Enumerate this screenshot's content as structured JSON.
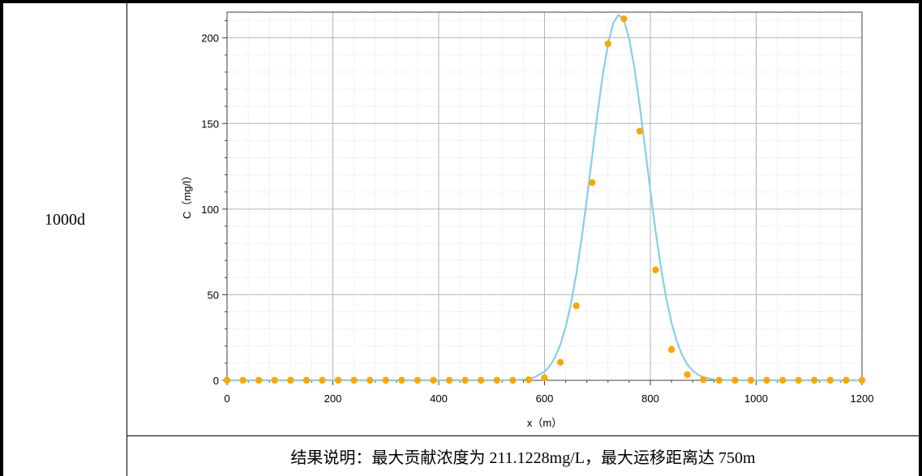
{
  "table": {
    "time_label": "1000d",
    "note": "结果说明：最大贡献浓度为 211.1228mg/L，最大运移距离达 750m"
  },
  "chart_data": {
    "type": "line",
    "title": "",
    "xlabel": "x（m）",
    "ylabel": "C（mg/l）",
    "xlim": [
      0,
      1200
    ],
    "ylim": [
      0,
      215
    ],
    "x_ticks": [
      0,
      200,
      400,
      600,
      800,
      1000,
      1200
    ],
    "y_ticks": [
      0,
      50,
      100,
      150,
      200
    ],
    "grid": true,
    "legend": "none",
    "series": [
      {
        "kind": "line",
        "color": "#87ceeb",
        "peak_x": 741,
        "peak_y": 213.5,
        "spread": 51.5,
        "sample_x": [
          0,
          20,
          40,
          60,
          80,
          100,
          120,
          140,
          160,
          180,
          200,
          220,
          240,
          260,
          280,
          300,
          320,
          340,
          360,
          380,
          400,
          420,
          440,
          460,
          480,
          500,
          520,
          540,
          560,
          580,
          600,
          610,
          620,
          630,
          640,
          650,
          660,
          670,
          680,
          690,
          700,
          710,
          720,
          730,
          740,
          750,
          760,
          770,
          780,
          790,
          800,
          810,
          820,
          830,
          840,
          850,
          860,
          870,
          880,
          890,
          900,
          920,
          940,
          960,
          980,
          1000,
          1020,
          1040,
          1060,
          1080,
          1100,
          1120,
          1140,
          1160,
          1180,
          1200
        ]
      },
      {
        "kind": "points",
        "color": "#ffa500",
        "x": [
          0,
          30,
          60,
          90,
          120,
          150,
          180,
          210,
          240,
          270,
          300,
          330,
          360,
          390,
          420,
          450,
          480,
          510,
          540,
          570,
          600,
          630,
          660,
          690,
          720,
          750,
          780,
          810,
          840,
          870,
          900,
          930,
          960,
          990,
          1020,
          1050,
          1080,
          1110,
          1140,
          1170,
          1200
        ],
        "y": [
          0,
          0,
          0,
          0,
          0,
          0,
          0,
          0,
          0,
          0,
          0,
          0,
          0,
          0,
          0,
          0,
          0,
          0,
          0,
          0.3,
          1.5,
          10.5,
          43.5,
          115.5,
          196.5,
          211.1,
          145.5,
          64.5,
          18,
          3.3,
          0.4,
          0,
          0,
          0,
          0,
          0,
          0,
          0,
          0,
          0,
          0
        ]
      }
    ]
  }
}
